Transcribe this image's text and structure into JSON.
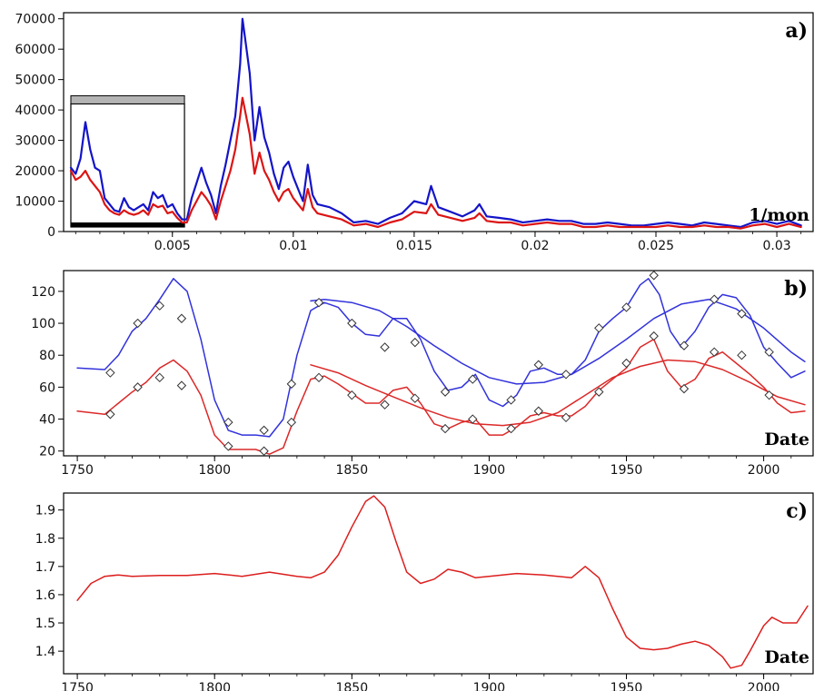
{
  "chart_data": [
    {
      "panel": "a)",
      "type": "line",
      "xlabel": "1/mon",
      "xlim": [
        0.0005,
        0.0315
      ],
      "ylim": [
        0,
        72000
      ],
      "xticks": [
        0.005,
        0.01,
        0.015,
        0.02,
        0.025,
        0.03
      ],
      "xtick_labels": [
        "0.005",
        "0.01",
        "0.015",
        "0.02",
        "0.025",
        "0.03"
      ],
      "yticks": [
        0,
        10000,
        20000,
        30000,
        40000,
        50000,
        60000,
        70000
      ],
      "ytick_labels": [
        "0",
        "10000",
        "20000",
        "30000",
        "40000",
        "50000",
        "60000",
        "70000"
      ],
      "grid": false,
      "inset_box": {
        "x": [
          0.0008,
          0.0055
        ],
        "y": [
          1500,
          42000
        ]
      },
      "series": [
        {
          "color": "#1414c8",
          "x": [
            0.0008,
            0.001,
            0.0012,
            0.0014,
            0.0016,
            0.0018,
            0.002,
            0.0022,
            0.0024,
            0.0026,
            0.0028,
            0.003,
            0.0032,
            0.0034,
            0.0036,
            0.0038,
            0.004,
            0.0042,
            0.0044,
            0.0046,
            0.0048,
            0.005,
            0.0052,
            0.0054,
            0.0056,
            0.0058,
            0.006,
            0.0062,
            0.0064,
            0.0066,
            0.0068,
            0.007,
            0.0072,
            0.0074,
            0.0076,
            0.0078,
            0.0079,
            0.008,
            0.0082,
            0.0084,
            0.0086,
            0.0088,
            0.009,
            0.0092,
            0.0094,
            0.0096,
            0.0098,
            0.01,
            0.0102,
            0.0104,
            0.0106,
            0.0108,
            0.011,
            0.0115,
            0.012,
            0.0125,
            0.013,
            0.0135,
            0.014,
            0.0145,
            0.015,
            0.0155,
            0.0157,
            0.016,
            0.0165,
            0.017,
            0.0175,
            0.0177,
            0.018,
            0.0185,
            0.019,
            0.0195,
            0.02,
            0.0205,
            0.021,
            0.0215,
            0.022,
            0.0225,
            0.023,
            0.0235,
            0.024,
            0.0245,
            0.025,
            0.0255,
            0.026,
            0.0265,
            0.027,
            0.0275,
            0.028,
            0.0285,
            0.029,
            0.0295,
            0.03,
            0.0305,
            0.031
          ],
          "y": [
            21000,
            19000,
            24000,
            36000,
            27000,
            21000,
            20000,
            11000,
            9000,
            7000,
            6500,
            11000,
            8000,
            7000,
            8000,
            9000,
            7000,
            13000,
            11000,
            12000,
            8000,
            9000,
            6000,
            4000,
            4000,
            11000,
            16000,
            21000,
            16000,
            12000,
            6000,
            15000,
            22000,
            30000,
            38000,
            55000,
            70000,
            64000,
            52000,
            30000,
            41000,
            31000,
            26000,
            19000,
            14000,
            21000,
            23000,
            18000,
            14000,
            10000,
            22000,
            12000,
            9000,
            8000,
            6000,
            3000,
            3500,
            2500,
            4500,
            6000,
            10000,
            9000,
            15000,
            8000,
            6500,
            5000,
            7000,
            9000,
            5000,
            4500,
            4000,
            3000,
            3500,
            4000,
            3500,
            3500,
            2500,
            2500,
            3000,
            2500,
            2000,
            2000,
            2500,
            3000,
            2500,
            2000,
            3000,
            2500,
            2000,
            1500,
            3000,
            3500,
            2500,
            3500,
            2000
          ]
        },
        {
          "color": "#dc1414",
          "x": [
            0.0008,
            0.001,
            0.0012,
            0.0014,
            0.0016,
            0.0018,
            0.002,
            0.0022,
            0.0024,
            0.0026,
            0.0028,
            0.003,
            0.0032,
            0.0034,
            0.0036,
            0.0038,
            0.004,
            0.0042,
            0.0044,
            0.0046,
            0.0048,
            0.005,
            0.0052,
            0.0054,
            0.0056,
            0.0058,
            0.006,
            0.0062,
            0.0064,
            0.0066,
            0.0068,
            0.007,
            0.0072,
            0.0074,
            0.0076,
            0.0078,
            0.0079,
            0.008,
            0.0082,
            0.0084,
            0.0086,
            0.0088,
            0.009,
            0.0092,
            0.0094,
            0.0096,
            0.0098,
            0.01,
            0.0102,
            0.0104,
            0.0106,
            0.0108,
            0.011,
            0.0115,
            0.012,
            0.0125,
            0.013,
            0.0135,
            0.014,
            0.0145,
            0.015,
            0.0155,
            0.0157,
            0.016,
            0.0165,
            0.017,
            0.0175,
            0.0177,
            0.018,
            0.0185,
            0.019,
            0.0195,
            0.02,
            0.0205,
            0.021,
            0.0215,
            0.022,
            0.0225,
            0.023,
            0.0235,
            0.024,
            0.0245,
            0.025,
            0.0255,
            0.026,
            0.0265,
            0.027,
            0.0275,
            0.028,
            0.0285,
            0.029,
            0.0295,
            0.03,
            0.0305,
            0.031
          ],
          "y": [
            20000,
            17000,
            18000,
            20000,
            17000,
            15000,
            13000,
            9000,
            7000,
            6000,
            5500,
            7000,
            6000,
            5500,
            6000,
            7000,
            5500,
            9000,
            8000,
            8500,
            6000,
            6500,
            4500,
            3000,
            3000,
            7000,
            10000,
            13000,
            11000,
            8500,
            4000,
            10000,
            15000,
            20000,
            27000,
            38000,
            44000,
            40000,
            32000,
            19000,
            26000,
            20000,
            17000,
            13000,
            10000,
            13000,
            14000,
            11000,
            9000,
            7000,
            14000,
            8000,
            6000,
            5000,
            4000,
            2000,
            2500,
            1500,
            3000,
            4000,
            6500,
            6000,
            9000,
            5500,
            4500,
            3500,
            4500,
            6000,
            3500,
            3000,
            3000,
            2000,
            2500,
            3000,
            2500,
            2500,
            1500,
            1500,
            2000,
            1500,
            1500,
            1500,
            1500,
            2000,
            1500,
            1500,
            2000,
            1500,
            1500,
            1000,
            2000,
            2500,
            1500,
            2500,
            1500
          ]
        }
      ]
    },
    {
      "panel": "b)",
      "type": "line",
      "xlabel": "Date",
      "xlim": [
        1745,
        2018
      ],
      "ylim": [
        17,
        133
      ],
      "xticks": [
        1750,
        1800,
        1850,
        1900,
        1950,
        2000
      ],
      "xtick_labels": [
        "1750",
        "1800",
        "1850",
        "1900",
        "1950",
        "2000"
      ],
      "yticks": [
        20,
        40,
        60,
        80,
        100,
        120
      ],
      "ytick_labels": [
        "20",
        "40",
        "60",
        "80",
        "100",
        "120"
      ],
      "grid": false,
      "series": [
        {
          "color": "#3232dc",
          "x": [
            1750,
            1760,
            1765,
            1770,
            1775,
            1780,
            1785,
            1790,
            1795,
            1800,
            1805,
            1810,
            1815,
            1820,
            1825,
            1830,
            1835,
            1840,
            1845,
            1850,
            1855,
            1860,
            1865,
            1870,
            1875,
            1880,
            1885,
            1890,
            1895,
            1900,
            1905,
            1910,
            1915,
            1920,
            1925,
            1930,
            1935,
            1940,
            1945,
            1950,
            1955,
            1958,
            1962,
            1966,
            1970,
            1975,
            1980,
            1985,
            1990,
            1995,
            2000,
            2005,
            2010,
            2015
          ],
          "y": [
            72,
            71,
            80,
            95,
            103,
            115,
            128,
            120,
            90,
            52,
            33,
            30,
            30,
            29,
            40,
            80,
            108,
            113,
            110,
            100,
            93,
            92,
            103,
            103,
            90,
            70,
            58,
            60,
            68,
            52,
            48,
            55,
            70,
            72,
            68,
            68,
            77,
            95,
            103,
            110,
            124,
            128,
            118,
            95,
            85,
            95,
            110,
            118,
            116,
            105,
            85,
            75,
            66,
            70
          ]
        },
        {
          "color": "#dc2828",
          "x": [
            1750,
            1760,
            1765,
            1770,
            1775,
            1780,
            1785,
            1790,
            1795,
            1800,
            1805,
            1810,
            1815,
            1820,
            1825,
            1830,
            1835,
            1840,
            1845,
            1850,
            1855,
            1860,
            1865,
            1870,
            1875,
            1880,
            1885,
            1890,
            1895,
            1900,
            1905,
            1910,
            1915,
            1920,
            1925,
            1930,
            1935,
            1940,
            1945,
            1950,
            1955,
            1960,
            1965,
            1970,
            1975,
            1980,
            1985,
            1990,
            1995,
            2000,
            2005,
            2010,
            2015
          ],
          "y": [
            45,
            43,
            50,
            57,
            63,
            72,
            77,
            70,
            55,
            30,
            21,
            21,
            21,
            18,
            22,
            45,
            65,
            67,
            62,
            56,
            50,
            50,
            58,
            60,
            50,
            37,
            34,
            38,
            40,
            30,
            30,
            35,
            42,
            44,
            42,
            42,
            48,
            58,
            65,
            72,
            85,
            90,
            70,
            60,
            65,
            78,
            82,
            75,
            68,
            60,
            50,
            44,
            45
          ]
        },
        {
          "color": "#3232dc",
          "x": [
            1835,
            1840,
            1850,
            1860,
            1870,
            1880,
            1890,
            1900,
            1910,
            1920,
            1930,
            1940,
            1950,
            1960,
            1970,
            1980,
            1990,
            2000,
            2010,
            2015
          ],
          "y": [
            114,
            115,
            113,
            108,
            98,
            86,
            75,
            66,
            62,
            63,
            68,
            78,
            90,
            103,
            112,
            115,
            109,
            97,
            82,
            76
          ]
        },
        {
          "color": "#dc2828",
          "x": [
            1835,
            1845,
            1855,
            1865,
            1875,
            1885,
            1895,
            1905,
            1915,
            1925,
            1935,
            1945,
            1955,
            1965,
            1975,
            1985,
            1995,
            2005,
            2015
          ],
          "y": [
            74,
            69,
            61,
            54,
            47,
            41,
            37,
            36,
            38,
            44,
            55,
            66,
            73,
            77,
            76,
            71,
            63,
            54,
            49
          ]
        }
      ],
      "markers": {
        "shape": "diamond",
        "x": [
          1762,
          1772,
          1780,
          1788,
          1762,
          1772,
          1780,
          1788,
          1805,
          1818,
          1805,
          1818,
          1828,
          1838,
          1828,
          1838,
          1850,
          1862,
          1850,
          1862,
          1873,
          1884,
          1873,
          1884,
          1894,
          1908,
          1894,
          1908,
          1918,
          1928,
          1918,
          1928,
          1940,
          1950,
          1940,
          1950,
          1960,
          1971,
          1960,
          1971,
          1982,
          1992,
          1982,
          1992,
          2002,
          2002
        ],
        "y": [
          69,
          100,
          111,
          103,
          43,
          60,
          66,
          61,
          38,
          33,
          23,
          20,
          62,
          113,
          38,
          66,
          100,
          85,
          55,
          49,
          88,
          57,
          53,
          34,
          65,
          52,
          40,
          34,
          74,
          68,
          45,
          41,
          97,
          110,
          57,
          75,
          130,
          86,
          92,
          59,
          115,
          106,
          82,
          80,
          82,
          55
        ]
      }
    },
    {
      "panel": "c)",
      "type": "line",
      "xlabel": "Date",
      "xlim": [
        1745,
        2018
      ],
      "ylim": [
        1.32,
        1.96
      ],
      "xticks": [
        1750,
        1800,
        1850,
        1900,
        1950,
        2000
      ],
      "xtick_labels": [
        "1750",
        "1800",
        "1850",
        "1900",
        "1950",
        "2000"
      ],
      "yticks": [
        1.4,
        1.5,
        1.6,
        1.7,
        1.8,
        1.9
      ],
      "ytick_labels": [
        "1.4",
        "1.5",
        "1.6",
        "1.7",
        "1.8",
        "1.9"
      ],
      "grid": false,
      "series": [
        {
          "color": "#dc1e1e",
          "x": [
            1750,
            1755,
            1760,
            1765,
            1770,
            1780,
            1790,
            1800,
            1810,
            1820,
            1830,
            1835,
            1840,
            1845,
            1850,
            1855,
            1858,
            1862,
            1866,
            1870,
            1875,
            1880,
            1885,
            1890,
            1895,
            1900,
            1910,
            1920,
            1930,
            1935,
            1940,
            1945,
            1950,
            1955,
            1960,
            1965,
            1970,
            1975,
            1980,
            1985,
            1988,
            1992,
            1995,
            2000,
            2003,
            2007,
            2012,
            2016
          ],
          "y": [
            1.58,
            1.64,
            1.665,
            1.67,
            1.665,
            1.668,
            1.668,
            1.675,
            1.665,
            1.68,
            1.665,
            1.66,
            1.68,
            1.74,
            1.84,
            1.93,
            1.95,
            1.91,
            1.79,
            1.68,
            1.64,
            1.655,
            1.69,
            1.68,
            1.66,
            1.665,
            1.675,
            1.67,
            1.66,
            1.7,
            1.66,
            1.55,
            1.45,
            1.41,
            1.405,
            1.41,
            1.425,
            1.435,
            1.42,
            1.38,
            1.34,
            1.35,
            1.4,
            1.49,
            1.52,
            1.5,
            1.5,
            1.56
          ]
        }
      ]
    }
  ]
}
